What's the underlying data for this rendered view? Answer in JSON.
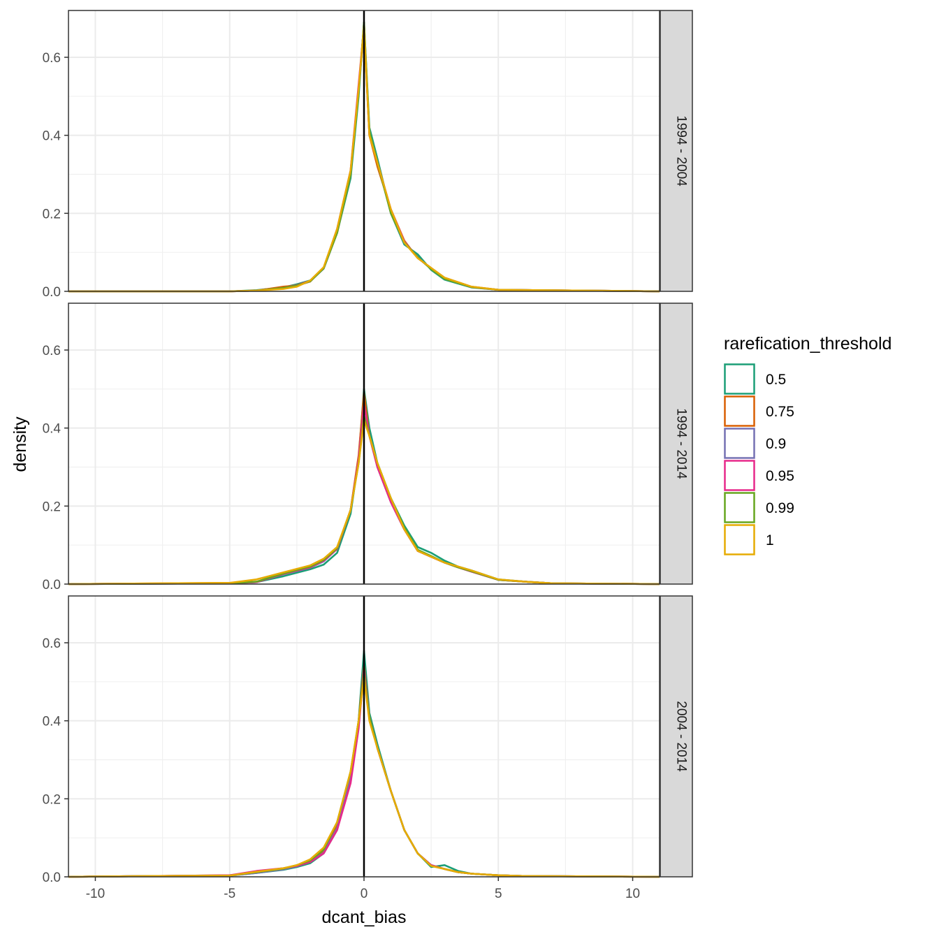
{
  "chart_data": {
    "type": "line",
    "chart_kind": "density",
    "xlabel": "dcant_bias",
    "ylabel": "density",
    "xlim": [
      -11,
      11
    ],
    "ylim": [
      0,
      0.72
    ],
    "x_ticks": [
      -10,
      -5,
      0,
      5,
      10
    ],
    "x_tick_labels": [
      "-10",
      "-5",
      "0",
      "5",
      "10"
    ],
    "y_ticks": [
      0.0,
      0.2,
      0.4,
      0.6
    ],
    "y_tick_labels": [
      "0.0",
      "0.2",
      "0.4",
      "0.6"
    ],
    "grid": true,
    "vline_x": 0,
    "legend": {
      "title": "rarefication_threshold",
      "placement": "right",
      "entries": [
        {
          "label": "0.5",
          "color": "#1B9E77"
        },
        {
          "label": "0.75",
          "color": "#D95F02"
        },
        {
          "label": "0.9",
          "color": "#7570B3"
        },
        {
          "label": "0.95",
          "color": "#E7298A"
        },
        {
          "label": "0.99",
          "color": "#66A61E"
        },
        {
          "label": "1",
          "color": "#E6AB02"
        }
      ]
    },
    "panels": [
      {
        "strip": "1994 - 2004",
        "series": [
          {
            "name": "0.5",
            "color": "#1B9E77",
            "x": [
              -11,
              -5,
              -4,
              -3,
              -2.5,
              -2,
              -1.5,
              -1,
              -0.5,
              -0.2,
              0,
              0.2,
              0.5,
              1,
              1.5,
              2,
              2.5,
              3,
              4,
              5,
              11
            ],
            "y": [
              0,
              0,
              0.003,
              0.01,
              0.018,
              0.028,
              0.06,
              0.15,
              0.29,
              0.5,
              0.69,
              0.42,
              0.34,
              0.2,
              0.12,
              0.095,
              0.055,
              0.03,
              0.01,
              0.004,
              0
            ]
          },
          {
            "name": "0.75",
            "color": "#D95F02",
            "x": [
              -11,
              -5,
              -4,
              -3,
              -2.5,
              -2,
              -1.5,
              -1,
              -0.5,
              -0.2,
              0,
              0.2,
              0.5,
              1,
              1.5,
              2,
              2.5,
              3,
              4,
              5,
              11
            ],
            "y": [
              0,
              0,
              0.002,
              0.012,
              0.015,
              0.025,
              0.06,
              0.15,
              0.3,
              0.52,
              0.67,
              0.4,
              0.32,
              0.21,
              0.13,
              0.085,
              0.06,
              0.035,
              0.012,
              0.004,
              0
            ]
          },
          {
            "name": "0.9",
            "color": "#7570B3",
            "x": [
              -11,
              -5,
              -4,
              -3,
              -2.5,
              -2,
              -1.5,
              -1,
              -0.5,
              -0.2,
              0,
              0.2,
              0.5,
              1,
              1.5,
              2,
              2.5,
              3,
              4,
              5,
              11
            ],
            "y": [
              0,
              0,
              0.002,
              0.008,
              0.014,
              0.026,
              0.058,
              0.15,
              0.3,
              0.52,
              0.68,
              0.41,
              0.33,
              0.2,
              0.125,
              0.088,
              0.057,
              0.032,
              0.011,
              0.004,
              0
            ]
          },
          {
            "name": "0.95",
            "color": "#E7298A",
            "x": [
              -11,
              -5,
              -4,
              -3,
              -2.5,
              -2,
              -1.5,
              -1,
              -0.5,
              -0.2,
              0,
              0.2,
              0.5,
              1,
              1.5,
              2,
              2.5,
              3,
              4,
              5,
              11
            ],
            "y": [
              0,
              0,
              0.002,
              0.009,
              0.016,
              0.027,
              0.06,
              0.16,
              0.31,
              0.53,
              0.68,
              0.4,
              0.33,
              0.21,
              0.128,
              0.086,
              0.058,
              0.033,
              0.011,
              0.004,
              0
            ]
          },
          {
            "name": "0.99",
            "color": "#66A61E",
            "x": [
              -11,
              -5,
              -4,
              -3,
              -2.5,
              -2,
              -1.5,
              -1,
              -0.5,
              -0.2,
              0,
              0.2,
              0.5,
              1,
              1.5,
              2,
              2.5,
              3,
              4,
              5,
              11
            ],
            "y": [
              0,
              0,
              0.002,
              0.009,
              0.015,
              0.026,
              0.059,
              0.15,
              0.3,
              0.51,
              0.69,
              0.41,
              0.33,
              0.2,
              0.126,
              0.087,
              0.057,
              0.032,
              0.011,
              0.004,
              0
            ]
          },
          {
            "name": "1",
            "color": "#E6AB02",
            "x": [
              -11,
              -5,
              -4,
              -3,
              -2.5,
              -2,
              -1.5,
              -1,
              -0.5,
              -0.2,
              0,
              0.2,
              0.5,
              1,
              1.5,
              2,
              2.5,
              3,
              4,
              5,
              11
            ],
            "y": [
              0,
              0,
              0.002,
              0.006,
              0.012,
              0.028,
              0.062,
              0.16,
              0.31,
              0.52,
              0.68,
              0.4,
              0.33,
              0.21,
              0.125,
              0.085,
              0.06,
              0.035,
              0.012,
              0.004,
              0
            ]
          }
        ]
      },
      {
        "strip": "1994 - 2014",
        "series": [
          {
            "name": "0.5",
            "color": "#1B9E77",
            "x": [
              -11,
              -5,
              -4,
              -3,
              -2,
              -1.5,
              -1,
              -0.5,
              -0.2,
              0,
              0.2,
              0.5,
              1,
              1.5,
              2,
              2.5,
              3,
              3.5,
              4,
              5,
              6,
              7,
              11
            ],
            "y": [
              0,
              0.002,
              0.005,
              0.02,
              0.038,
              0.05,
              0.08,
              0.18,
              0.32,
              0.5,
              0.4,
              0.31,
              0.22,
              0.15,
              0.095,
              0.08,
              0.06,
              0.045,
              0.035,
              0.012,
              0.006,
              0.002,
              0
            ]
          },
          {
            "name": "0.75",
            "color": "#D95F02",
            "x": [
              -11,
              -5,
              -4,
              -3,
              -2,
              -1.5,
              -1,
              -0.5,
              -0.2,
              0,
              0.2,
              0.5,
              1,
              1.5,
              2,
              2.5,
              3,
              3.5,
              4,
              5,
              6,
              7,
              11
            ],
            "y": [
              0,
              0.003,
              0.006,
              0.028,
              0.045,
              0.06,
              0.09,
              0.19,
              0.33,
              0.49,
              0.38,
              0.3,
              0.21,
              0.14,
              0.085,
              0.07,
              0.055,
              0.043,
              0.032,
              0.011,
              0.006,
              0.002,
              0
            ]
          },
          {
            "name": "0.9",
            "color": "#7570B3",
            "x": [
              -11,
              -5,
              -4,
              -3,
              -2,
              -1.5,
              -1,
              -0.5,
              -0.2,
              0,
              0.2,
              0.5,
              1,
              1.5,
              2,
              2.5,
              3,
              3.5,
              4,
              5,
              6,
              7,
              11
            ],
            "y": [
              0,
              0.002,
              0.005,
              0.025,
              0.042,
              0.058,
              0.09,
              0.19,
              0.32,
              0.46,
              0.38,
              0.3,
              0.21,
              0.14,
              0.085,
              0.07,
              0.055,
              0.043,
              0.032,
              0.011,
              0.006,
              0.002,
              0
            ]
          },
          {
            "name": "0.95",
            "color": "#E7298A",
            "x": [
              -11,
              -5,
              -4,
              -3,
              -2,
              -1.5,
              -1,
              -0.5,
              -0.2,
              0,
              0.2,
              0.5,
              1,
              1.5,
              2,
              2.5,
              3,
              3.5,
              4,
              5,
              6,
              7,
              11
            ],
            "y": [
              0,
              0.002,
              0.005,
              0.026,
              0.043,
              0.06,
              0.09,
              0.19,
              0.32,
              0.46,
              0.38,
              0.3,
              0.21,
              0.14,
              0.085,
              0.07,
              0.055,
              0.043,
              0.032,
              0.011,
              0.006,
              0.002,
              0
            ]
          },
          {
            "name": "0.99",
            "color": "#66A61E",
            "x": [
              -11,
              -5,
              -4,
              -3,
              -2,
              -1.5,
              -1,
              -0.5,
              -0.2,
              0,
              0.2,
              0.5,
              1,
              1.5,
              2,
              2.5,
              3,
              3.5,
              4,
              5,
              6,
              7,
              11
            ],
            "y": [
              0,
              0.002,
              0.006,
              0.027,
              0.045,
              0.062,
              0.092,
              0.19,
              0.31,
              0.43,
              0.38,
              0.31,
              0.22,
              0.145,
              0.088,
              0.072,
              0.055,
              0.043,
              0.033,
              0.011,
              0.006,
              0.002,
              0
            ]
          },
          {
            "name": "1",
            "color": "#E6AB02",
            "x": [
              -11,
              -5,
              -4,
              -3,
              -2,
              -1.5,
              -1,
              -0.5,
              -0.2,
              0,
              0.2,
              0.5,
              1,
              1.5,
              2,
              2.5,
              3,
              3.5,
              4,
              5,
              6,
              7,
              11
            ],
            "y": [
              0,
              0.003,
              0.012,
              0.03,
              0.048,
              0.065,
              0.095,
              0.19,
              0.31,
              0.42,
              0.38,
              0.31,
              0.22,
              0.14,
              0.085,
              0.07,
              0.055,
              0.045,
              0.035,
              0.012,
              0.006,
              0.002,
              0
            ]
          }
        ]
      },
      {
        "strip": "2004 - 2014",
        "series": [
          {
            "name": "0.5",
            "color": "#1B9E77",
            "x": [
              -11,
              -8,
              -5,
              -4,
              -3,
              -2.5,
              -2,
              -1.5,
              -1,
              -0.5,
              -0.2,
              0,
              0.2,
              0.5,
              1,
              1.5,
              2,
              2.5,
              3,
              3.5,
              4,
              5,
              6,
              11
            ],
            "y": [
              0,
              0.002,
              0.003,
              0.01,
              0.018,
              0.025,
              0.035,
              0.06,
              0.12,
              0.25,
              0.4,
              0.58,
              0.42,
              0.34,
              0.22,
              0.12,
              0.06,
              0.025,
              0.03,
              0.015,
              0.008,
              0.004,
              0.002,
              0
            ]
          },
          {
            "name": "0.75",
            "color": "#D95F02",
            "x": [
              -11,
              -8,
              -5,
              -4,
              -3,
              -2.5,
              -2,
              -1.5,
              -1,
              -0.5,
              -0.2,
              0,
              0.2,
              0.5,
              1,
              1.5,
              2,
              2.5,
              3,
              3.5,
              4,
              5,
              6,
              11
            ],
            "y": [
              0,
              0.002,
              0.004,
              0.012,
              0.02,
              0.028,
              0.04,
              0.065,
              0.13,
              0.26,
              0.4,
              0.54,
              0.41,
              0.33,
              0.22,
              0.12,
              0.06,
              0.03,
              0.02,
              0.012,
              0.008,
              0.004,
              0.002,
              0
            ]
          },
          {
            "name": "0.9",
            "color": "#7570B3",
            "x": [
              -11,
              -8,
              -5,
              -4,
              -3,
              -2.5,
              -2,
              -1.5,
              -1,
              -0.5,
              -0.2,
              0,
              0.2,
              0.5,
              1,
              1.5,
              2,
              2.5,
              3,
              3.5,
              4,
              5,
              6,
              11
            ],
            "y": [
              0,
              0.002,
              0.003,
              0.01,
              0.019,
              0.027,
              0.038,
              0.062,
              0.125,
              0.25,
              0.39,
              0.53,
              0.41,
              0.33,
              0.22,
              0.12,
              0.06,
              0.03,
              0.02,
              0.012,
              0.008,
              0.004,
              0.002,
              0
            ]
          },
          {
            "name": "0.95",
            "color": "#E7298A",
            "x": [
              -11,
              -8,
              -5,
              -4,
              -3,
              -2.5,
              -2,
              -1.5,
              -1,
              -0.5,
              -0.2,
              0,
              0.2,
              0.5,
              1,
              1.5,
              2,
              2.5,
              3,
              3.5,
              4,
              5,
              6,
              11
            ],
            "y": [
              0,
              0.002,
              0.004,
              0.015,
              0.022,
              0.028,
              0.038,
              0.06,
              0.12,
              0.24,
              0.38,
              0.53,
              0.41,
              0.33,
              0.22,
              0.12,
              0.06,
              0.03,
              0.02,
              0.012,
              0.008,
              0.004,
              0.002,
              0
            ]
          },
          {
            "name": "0.99",
            "color": "#66A61E",
            "x": [
              -11,
              -8,
              -5,
              -4,
              -3,
              -2.5,
              -2,
              -1.5,
              -1,
              -0.5,
              -0.2,
              0,
              0.2,
              0.5,
              1,
              1.5,
              2,
              2.5,
              3,
              3.5,
              4,
              5,
              6,
              11
            ],
            "y": [
              0,
              0.002,
              0.003,
              0.012,
              0.021,
              0.03,
              0.042,
              0.07,
              0.14,
              0.27,
              0.4,
              0.52,
              0.41,
              0.33,
              0.22,
              0.12,
              0.06,
              0.028,
              0.02,
              0.012,
              0.008,
              0.004,
              0.002,
              0
            ]
          },
          {
            "name": "1",
            "color": "#E6AB02",
            "x": [
              -11,
              -8,
              -5,
              -4,
              -3,
              -2.5,
              -2,
              -1.5,
              -1,
              -0.5,
              -0.2,
              0,
              0.2,
              0.5,
              1,
              1.5,
              2,
              2.5,
              3,
              3.5,
              4,
              5,
              6,
              11
            ],
            "y": [
              0,
              0.002,
              0.003,
              0.013,
              0.022,
              0.03,
              0.045,
              0.075,
              0.14,
              0.27,
              0.4,
              0.51,
              0.4,
              0.33,
              0.22,
              0.12,
              0.06,
              0.028,
              0.02,
              0.012,
              0.008,
              0.004,
              0.002,
              0
            ]
          }
        ]
      }
    ]
  }
}
